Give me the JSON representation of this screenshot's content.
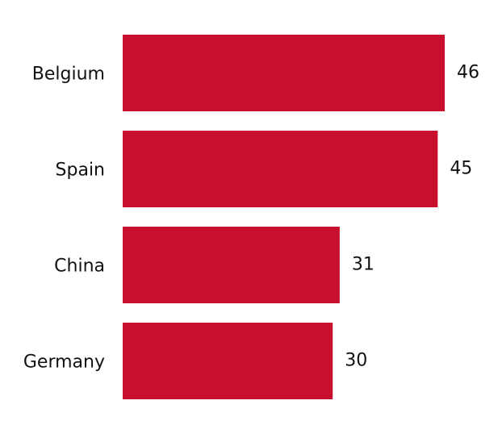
{
  "chart_data": {
    "type": "bar",
    "orientation": "horizontal",
    "categories": [
      "Belgium",
      "Spain",
      "China",
      "Germany"
    ],
    "values": [
      46,
      45,
      31,
      30
    ],
    "data_labels": [
      "46",
      "45",
      "31",
      "30"
    ],
    "xlim": [
      0,
      46
    ],
    "title": "",
    "xlabel": "",
    "ylabel": "",
    "grid": false,
    "legend": "none",
    "bar_color": "#c8102e"
  }
}
